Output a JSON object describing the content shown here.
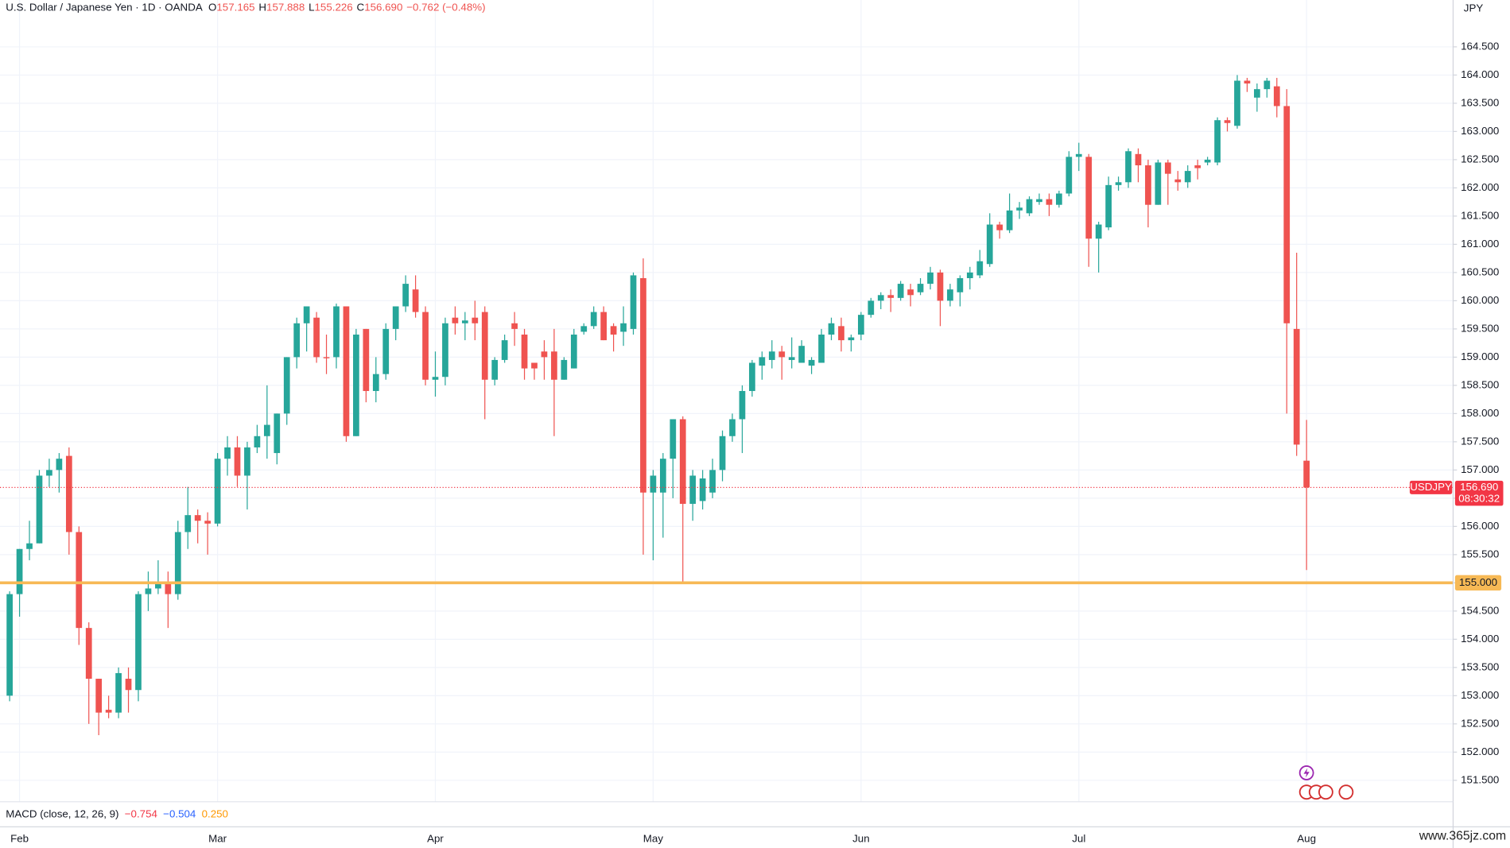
{
  "chart_data": {
    "type": "candlestick",
    "legend": {
      "title": "U.S. Dollar / Japanese Yen · 1D · OANDA",
      "items": [
        {
          "key": "O",
          "value": "157.165"
        },
        {
          "key": "H",
          "value": "157.888"
        },
        {
          "key": "L",
          "value": "155.226"
        },
        {
          "key": "C",
          "value": "156.690"
        }
      ],
      "change": "−0.762 (−0.48%)"
    },
    "axis_unit": "JPY",
    "up_color": "#26a69a",
    "down_color": "#ef5350",
    "grid": true,
    "ylim": [
      151.12,
      165.33
    ],
    "yticks": [
      {
        "value": 151.5,
        "label": "151.500"
      },
      {
        "value": 152,
        "label": "152.000"
      },
      {
        "value": 152.5,
        "label": "152.500"
      },
      {
        "value": 153,
        "label": "153.000"
      },
      {
        "value": 153.5,
        "label": "153.500"
      },
      {
        "value": 154,
        "label": "154.000"
      },
      {
        "value": 154.5,
        "label": "154.500"
      },
      {
        "value": 155,
        "label": "155.000"
      },
      {
        "value": 155.5,
        "label": "155.500"
      },
      {
        "value": 156,
        "label": "156.000"
      },
      {
        "value": 156.5,
        "label": "156.500"
      },
      {
        "value": 157,
        "label": "157.000"
      },
      {
        "value": 157.5,
        "label": "157.500"
      },
      {
        "value": 158,
        "label": "158.000"
      },
      {
        "value": 158.5,
        "label": "158.500"
      },
      {
        "value": 159,
        "label": "159.000"
      },
      {
        "value": 159.5,
        "label": "159.500"
      },
      {
        "value": 160,
        "label": "160.000"
      },
      {
        "value": 160.5,
        "label": "160.500"
      },
      {
        "value": 161,
        "label": "161.000"
      },
      {
        "value": 161.5,
        "label": "161.500"
      },
      {
        "value": 162,
        "label": "162.000"
      },
      {
        "value": 162.5,
        "label": "162.500"
      },
      {
        "value": 163,
        "label": "163.000"
      },
      {
        "value": 163.5,
        "label": "163.500"
      },
      {
        "value": 164,
        "label": "164.000"
      },
      {
        "value": 164.5,
        "label": "164.500"
      }
    ],
    "categories": [
      null,
      "Feb",
      null,
      null,
      null,
      null,
      null,
      null,
      null,
      null,
      null,
      null,
      null,
      null,
      null,
      null,
      null,
      null,
      null,
      null,
      null,
      "Mar",
      null,
      null,
      null,
      null,
      null,
      null,
      null,
      null,
      null,
      null,
      null,
      null,
      null,
      null,
      null,
      null,
      null,
      null,
      null,
      null,
      null,
      "Apr",
      null,
      null,
      null,
      null,
      null,
      null,
      null,
      null,
      null,
      null,
      null,
      null,
      null,
      null,
      null,
      null,
      null,
      null,
      null,
      null,
      null,
      "May",
      null,
      null,
      null,
      null,
      null,
      null,
      null,
      null,
      null,
      null,
      null,
      null,
      null,
      null,
      null,
      null,
      null,
      null,
      null,
      null,
      "Jun",
      null,
      null,
      null,
      null,
      null,
      null,
      null,
      null,
      null,
      null,
      null,
      null,
      null,
      null,
      null,
      null,
      null,
      null,
      null,
      null,
      null,
      "Jul",
      null,
      null,
      null,
      null,
      null,
      null,
      null,
      null,
      null,
      null,
      null,
      null,
      null,
      null,
      null,
      null,
      null,
      null,
      null,
      null,
      null,
      null,
      "Aug"
    ],
    "open": [
      153.0,
      154.8,
      155.6,
      155.7,
      156.9,
      157.0,
      157.25,
      155.9,
      154.2,
      153.3,
      152.75,
      152.7,
      153.3,
      153.1,
      154.8,
      154.9,
      155.0,
      154.8,
      155.9,
      156.2,
      156.1,
      156.05,
      157.2,
      157.4,
      156.9,
      157.4,
      157.6,
      157.3,
      158.0,
      159.0,
      159.6,
      159.7,
      159.0,
      159.0,
      159.9,
      157.6,
      159.5,
      158.4,
      158.7,
      159.5,
      159.9,
      160.2,
      159.8,
      158.6,
      158.65,
      159.7,
      159.6,
      159.7,
      159.8,
      158.6,
      158.95,
      159.6,
      159.4,
      158.9,
      159.1,
      159.1,
      158.6,
      158.8,
      159.45,
      159.55,
      159.8,
      159.55,
      159.45,
      159.5,
      160.4,
      156.6,
      156.6,
      157.2,
      157.9,
      156.4,
      156.45,
      156.6,
      157.0,
      157.6,
      157.9,
      158.4,
      158.85,
      158.95,
      159.1,
      158.95,
      158.9,
      158.85,
      158.9,
      159.4,
      159.55,
      159.3,
      159.4,
      159.75,
      160.0,
      160.1,
      160.05,
      160.2,
      160.15,
      160.3,
      160.5,
      160.0,
      160.15,
      160.4,
      160.45,
      160.65,
      161.35,
      161.25,
      161.6,
      161.55,
      161.75,
      161.8,
      161.7,
      161.9,
      162.55,
      162.55,
      161.1,
      161.3,
      162.05,
      162.1,
      162.6,
      162.4,
      161.7,
      162.45,
      162.15,
      162.1,
      162.4,
      162.45,
      162.45,
      163.2,
      163.1,
      163.9,
      163.6,
      163.75,
      163.8,
      163.45,
      159.5,
      157.165
    ],
    "high": [
      154.85,
      155.6,
      156.1,
      157.0,
      157.2,
      157.3,
      157.4,
      156.0,
      154.3,
      153.3,
      153.0,
      153.5,
      153.5,
      154.85,
      155.2,
      155.4,
      155.2,
      156.1,
      156.7,
      156.3,
      156.25,
      157.3,
      157.6,
      157.6,
      157.5,
      157.8,
      158.5,
      158.0,
      159.0,
      159.7,
      159.9,
      159.8,
      159.4,
      159.95,
      159.9,
      159.5,
      159.5,
      159.0,
      159.6,
      159.9,
      160.45,
      160.45,
      159.9,
      159.1,
      159.7,
      159.9,
      159.8,
      160.0,
      159.9,
      159.0,
      159.4,
      159.8,
      159.5,
      158.9,
      159.3,
      159.5,
      159.0,
      159.5,
      159.6,
      159.9,
      159.9,
      159.6,
      159.9,
      160.5,
      160.75,
      157.0,
      157.3,
      157.9,
      157.95,
      157.0,
      157.0,
      157.2,
      157.7,
      158.0,
      158.5,
      158.95,
      159.1,
      159.3,
      159.2,
      159.35,
      159.3,
      159.0,
      159.5,
      159.7,
      159.7,
      159.4,
      159.8,
      160.05,
      160.15,
      160.2,
      160.35,
      160.3,
      160.4,
      160.6,
      160.55,
      160.3,
      160.45,
      160.6,
      160.9,
      161.55,
      161.4,
      161.9,
      161.75,
      161.85,
      161.9,
      161.9,
      161.95,
      162.65,
      162.8,
      162.6,
      161.4,
      162.2,
      162.2,
      162.7,
      162.7,
      162.5,
      162.5,
      162.5,
      162.3,
      162.4,
      162.5,
      162.55,
      163.25,
      163.25,
      164.0,
      163.95,
      163.85,
      163.95,
      163.95,
      163.75,
      160.85,
      157.888
    ],
    "low": [
      152.9,
      154.4,
      155.4,
      155.7,
      156.7,
      156.6,
      155.5,
      153.9,
      152.5,
      152.3,
      152.6,
      152.6,
      152.7,
      152.9,
      154.5,
      154.8,
      154.2,
      154.7,
      155.6,
      155.7,
      155.5,
      156.0,
      156.9,
      156.7,
      156.3,
      157.3,
      157.2,
      157.1,
      157.8,
      158.8,
      159.1,
      158.9,
      158.7,
      158.8,
      157.5,
      157.6,
      158.2,
      158.2,
      158.6,
      159.3,
      159.8,
      159.7,
      158.5,
      158.3,
      158.5,
      159.4,
      159.3,
      159.3,
      157.9,
      158.5,
      158.9,
      159.2,
      158.6,
      158.6,
      158.6,
      157.6,
      158.6,
      158.8,
      159.4,
      159.5,
      159.3,
      159.1,
      159.2,
      159.4,
      155.5,
      155.4,
      155.8,
      156.5,
      155.0,
      156.1,
      156.3,
      156.5,
      156.8,
      157.5,
      157.3,
      158.3,
      158.6,
      158.8,
      158.6,
      158.8,
      158.9,
      158.7,
      158.9,
      159.3,
      159.1,
      159.1,
      159.3,
      159.7,
      159.85,
      159.8,
      160.0,
      159.9,
      160.1,
      160.2,
      159.55,
      159.9,
      159.9,
      160.2,
      160.4,
      160.6,
      161.1,
      161.2,
      161.45,
      161.5,
      161.7,
      161.5,
      161.65,
      161.85,
      162.3,
      160.6,
      160.5,
      161.25,
      161.95,
      162.0,
      162.1,
      161.3,
      161.7,
      161.7,
      161.95,
      162.0,
      162.15,
      162.4,
      162.4,
      163.0,
      163.05,
      163.7,
      163.35,
      163.6,
      163.25,
      158.0,
      157.25,
      155.226
    ],
    "close": [
      154.8,
      155.6,
      155.7,
      156.9,
      157.0,
      157.2,
      155.9,
      154.2,
      153.3,
      152.7,
      152.7,
      153.4,
      153.1,
      154.8,
      154.9,
      155.0,
      154.8,
      155.9,
      156.2,
      156.1,
      156.05,
      157.2,
      157.4,
      156.9,
      157.4,
      157.6,
      157.8,
      158.0,
      159.0,
      159.6,
      159.9,
      159.0,
      158.98,
      159.9,
      157.6,
      159.4,
      158.4,
      158.7,
      159.5,
      159.9,
      160.3,
      159.8,
      158.6,
      158.65,
      159.6,
      159.6,
      159.65,
      159.6,
      158.6,
      158.95,
      159.3,
      159.5,
      158.8,
      158.8,
      159.0,
      158.6,
      158.95,
      159.4,
      159.55,
      159.8,
      159.3,
      159.4,
      159.6,
      160.45,
      156.6,
      156.9,
      157.2,
      157.9,
      156.4,
      156.9,
      156.85,
      157.0,
      157.6,
      157.9,
      158.4,
      158.9,
      159.0,
      159.1,
      159.0,
      159.0,
      159.2,
      158.95,
      159.4,
      159.6,
      159.3,
      159.35,
      159.75,
      160.0,
      160.1,
      160.05,
      160.3,
      160.1,
      160.3,
      160.5,
      160.0,
      160.2,
      160.4,
      160.5,
      160.7,
      161.35,
      161.25,
      161.6,
      161.65,
      161.8,
      161.8,
      161.7,
      161.9,
      162.55,
      162.6,
      161.1,
      161.35,
      162.05,
      162.1,
      162.65,
      162.4,
      161.7,
      162.45,
      162.25,
      162.1,
      162.3,
      162.35,
      162.5,
      163.2,
      163.15,
      163.9,
      163.85,
      163.75,
      163.9,
      163.45,
      159.6,
      157.45,
      156.69
    ],
    "alert_line": {
      "value": 155,
      "label": "155.000",
      "color": "#f7b955"
    },
    "price_tag": {
      "symbol": "USDJPY",
      "price": {
        "value": 156.69,
        "label": "156.690"
      },
      "countdown": "08:30:32",
      "color": "#f23645"
    },
    "macd": {
      "label": "MACD (close, 12, 26, 9)",
      "values": [
        {
          "text": "−0.754",
          "color": "#f23645"
        },
        {
          "text": "−0.504",
          "color": "#2962ff"
        },
        {
          "text": "0.250",
          "color": "#ff9800"
        }
      ]
    },
    "watermark": "www.365jz.com"
  }
}
